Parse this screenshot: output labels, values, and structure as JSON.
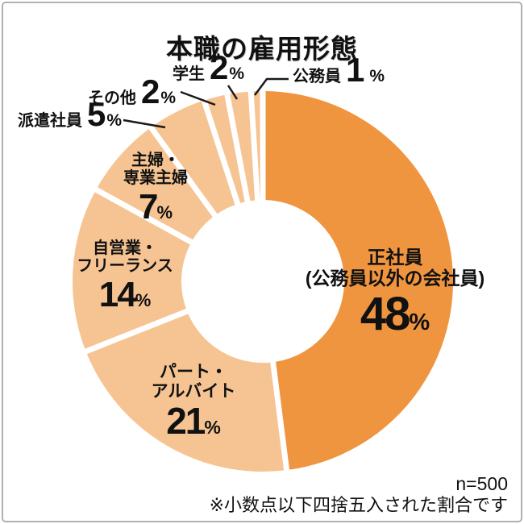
{
  "chart_data": {
    "type": "pie",
    "donut": true,
    "title": "本職の雇用形態",
    "unit": "%",
    "start_angle_deg": -90,
    "direction": "clockwise",
    "legend_position": "none",
    "colors": {
      "primary": "#F0953F",
      "secondary": "#F6C492"
    },
    "segments": [
      {
        "label": "正社員\n(公務員以外の会社員)",
        "value": 48,
        "color": "#F0953F"
      },
      {
        "label": "パート・\nアルバイト",
        "value": 21,
        "color": "#F6C492"
      },
      {
        "label": "自営業・\nフリーランス",
        "value": 14,
        "color": "#F6C492"
      },
      {
        "label": "主婦・\n専業主婦",
        "value": 7,
        "color": "#F6C492"
      },
      {
        "label": "派遣社員",
        "value": 5,
        "color": "#F6C492"
      },
      {
        "label": "その他",
        "value": 2,
        "color": "#F6C492"
      },
      {
        "label": "学生",
        "value": 2,
        "color": "#F6C492"
      },
      {
        "label": "公務員",
        "value": 1,
        "color": "#F6C492"
      }
    ]
  },
  "footer": {
    "sample_size": "n=500",
    "note": "※小数点以下四捨五入された割合です"
  }
}
